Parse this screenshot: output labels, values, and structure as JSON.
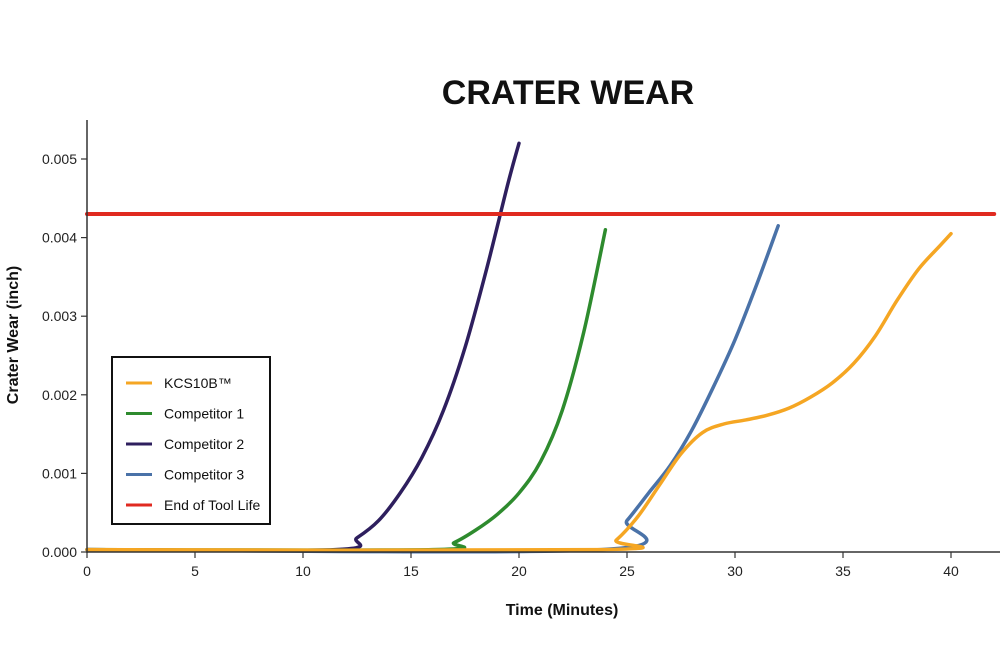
{
  "chart_data": {
    "type": "line",
    "title": "CRATER WEAR",
    "xlabel": "Time (Minutes)",
    "ylabel": "Crater Wear (inch)",
    "xlim": [
      0,
      42
    ],
    "ylim": [
      0,
      0.0055
    ],
    "x_ticks": [
      0,
      5,
      10,
      15,
      20,
      25,
      30,
      35,
      40
    ],
    "x_tick_labels": [
      "0",
      "5",
      "10",
      "15",
      "20",
      "25",
      "30",
      "35",
      "40"
    ],
    "y_ticks": [
      0,
      0.001,
      0.002,
      0.003,
      0.004,
      0.005
    ],
    "y_tick_labels": [
      "0.000",
      "0.001",
      "0.002",
      "0.003",
      "0.004",
      "0.005"
    ],
    "grid": false,
    "legend_position": "lower-left",
    "series": [
      {
        "name": "KCS10B™",
        "color": "#f5a623",
        "x": [
          0,
          23.8,
          24.5,
          25.5,
          26.5,
          27.5,
          28.5,
          29.5,
          30.5,
          31.5,
          32.5,
          33.5,
          34.5,
          35.5,
          36.5,
          37.5,
          38.5,
          39.5,
          40
        ],
        "y": [
          3e-05,
          3e-05,
          0.00015,
          0.00045,
          0.00085,
          0.00125,
          0.00152,
          0.00163,
          0.00168,
          0.00174,
          0.00183,
          0.00197,
          0.00215,
          0.0024,
          0.00275,
          0.0032,
          0.0036,
          0.0039,
          0.00405
        ]
      },
      {
        "name": "Competitor 1",
        "color": "#2e8b2e",
        "x": [
          0,
          16,
          17,
          18,
          19,
          20,
          21,
          22,
          23,
          24
        ],
        "y": [
          3e-05,
          3e-05,
          0.00012,
          0.00028,
          0.00048,
          0.00075,
          0.00115,
          0.0018,
          0.0028,
          0.0041
        ]
      },
      {
        "name": "Competitor 2",
        "color": "#2e1f5e",
        "x": [
          0,
          11.5,
          12.5,
          13.5,
          14.5,
          15.5,
          16.5,
          17.5,
          18.5,
          19.5,
          20
        ],
        "y": [
          3e-05,
          3e-05,
          0.00018,
          0.0004,
          0.00075,
          0.0012,
          0.0018,
          0.0026,
          0.0036,
          0.0047,
          0.0052
        ]
      },
      {
        "name": "Competitor 3",
        "color": "#4a72a8",
        "x": [
          0,
          23.8,
          25,
          26,
          27,
          28,
          29,
          30,
          31,
          32
        ],
        "y": [
          3e-05,
          3e-05,
          0.0004,
          0.00075,
          0.0011,
          0.00155,
          0.0021,
          0.0027,
          0.0034,
          0.00415
        ]
      },
      {
        "name": "End of Tool Life",
        "color": "#e02a20",
        "x": [
          0,
          42
        ],
        "y": [
          0.0043,
          0.0043
        ]
      }
    ]
  }
}
